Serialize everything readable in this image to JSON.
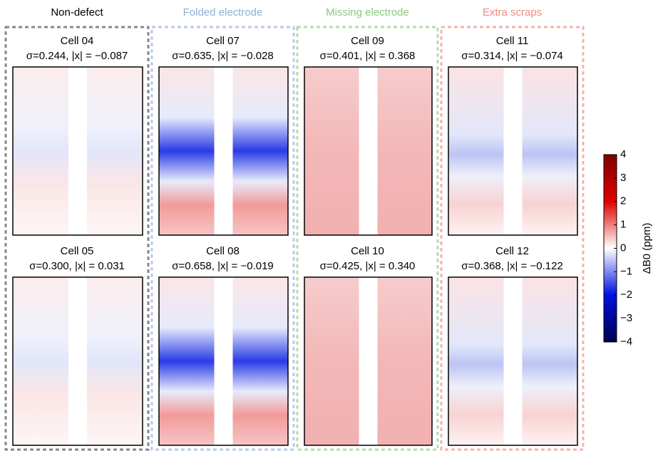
{
  "groups": [
    {
      "title": "Non-defect",
      "cells": [
        {
          "title": "Cell 04",
          "stats": "σ=0.244, |x| = −0.087"
        },
        {
          "title": "Cell 05",
          "stats": "σ=0.300, |x| = 0.031"
        }
      ]
    },
    {
      "title": "Folded electrode",
      "cells": [
        {
          "title": "Cell 07",
          "stats": "σ=0.635, |x| = −0.028"
        },
        {
          "title": "Cell 08",
          "stats": "σ=0.658, |x| = −0.019"
        }
      ]
    },
    {
      "title": "Missing electrode",
      "cells": [
        {
          "title": "Cell 09",
          "stats": "σ=0.401, |x| = 0.368"
        },
        {
          "title": "Cell 10",
          "stats": "σ=0.425, |x| = 0.340"
        }
      ]
    },
    {
      "title": "Extra scraps",
      "cells": [
        {
          "title": "Cell 11",
          "stats": "σ=0.314, |x| = −0.074"
        },
        {
          "title": "Cell 12",
          "stats": "σ=0.368, |x| = −0.122"
        }
      ]
    }
  ],
  "colorbar": {
    "label": "ΔB0 (ppm)",
    "lim": [
      -4,
      4
    ],
    "ticks": [
      {
        "value": -4,
        "label": "−4"
      },
      {
        "value": -3,
        "label": "−3"
      },
      {
        "value": -2,
        "label": "−2"
      },
      {
        "value": -1,
        "label": "−1"
      },
      0,
      1,
      2,
      3,
      4
    ]
  }
}
